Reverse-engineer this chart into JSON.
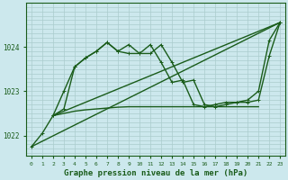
{
  "background_color": "#cce8ed",
  "grid_color": "#aacccc",
  "line_color": "#1a5c1a",
  "xlabel": "Graphe pression niveau de la mer (hPa)",
  "xlabel_fontsize": 6.5,
  "xlim": [
    -0.5,
    23.5
  ],
  "ylim": [
    1021.55,
    1025.0
  ],
  "yticks": [
    1022,
    1023,
    1024
  ],
  "xtick_labels": [
    "0",
    "1",
    "2",
    "3",
    "4",
    "5",
    "6",
    "7",
    "8",
    "9",
    "10",
    "11",
    "12",
    "13",
    "14",
    "15",
    "16",
    "17",
    "18",
    "19",
    "20",
    "21",
    "22",
    "23"
  ],
  "series": [
    {
      "x": [
        0,
        1,
        2,
        3,
        4,
        5,
        6,
        7,
        8,
        9,
        10,
        11,
        12,
        13,
        14,
        15,
        16,
        17,
        18,
        19,
        20,
        21,
        22,
        23
      ],
      "y": [
        1021.75,
        1022.05,
        1022.45,
        1023.0,
        1023.55,
        1023.75,
        1023.9,
        1024.1,
        1023.9,
        1023.85,
        1023.85,
        1024.05,
        1023.65,
        1023.2,
        1023.25,
        1022.7,
        1022.65,
        1022.7,
        1022.75,
        1022.75,
        1022.8,
        1023.0,
        1024.15,
        1024.55
      ],
      "has_markers": true,
      "linewidth": 1.0,
      "markersize": 3.5
    },
    {
      "x": [
        2,
        3,
        4,
        5,
        6,
        7,
        8,
        9,
        10,
        11,
        12,
        13,
        14,
        15,
        16,
        17,
        18,
        19,
        20,
        21,
        22,
        23
      ],
      "y": [
        1022.45,
        1022.6,
        1023.55,
        1023.75,
        1023.9,
        1024.1,
        1023.9,
        1024.05,
        1023.85,
        1023.85,
        1024.05,
        1023.65,
        1023.2,
        1023.25,
        1022.7,
        1022.65,
        1022.7,
        1022.75,
        1022.75,
        1022.8,
        1023.8,
        1024.55
      ],
      "has_markers": true,
      "linewidth": 1.0,
      "markersize": 3.5
    },
    {
      "x": [
        0,
        23
      ],
      "y": [
        1021.75,
        1024.55
      ],
      "has_markers": false,
      "linewidth": 1.0,
      "markersize": 0
    },
    {
      "x": [
        2,
        23
      ],
      "y": [
        1022.45,
        1024.55
      ],
      "has_markers": false,
      "linewidth": 1.0,
      "markersize": 0
    },
    {
      "x": [
        2,
        3,
        4,
        5,
        6,
        7,
        8,
        9,
        10,
        11,
        12,
        13,
        14,
        15,
        16,
        17,
        18,
        19,
        20,
        21
      ],
      "y": [
        1022.45,
        1022.5,
        1022.55,
        1022.58,
        1022.6,
        1022.62,
        1022.64,
        1022.65,
        1022.65,
        1022.65,
        1022.65,
        1022.65,
        1022.65,
        1022.65,
        1022.65,
        1022.65,
        1022.65,
        1022.65,
        1022.65,
        1022.65
      ],
      "has_markers": false,
      "linewidth": 1.0,
      "markersize": 0
    }
  ]
}
